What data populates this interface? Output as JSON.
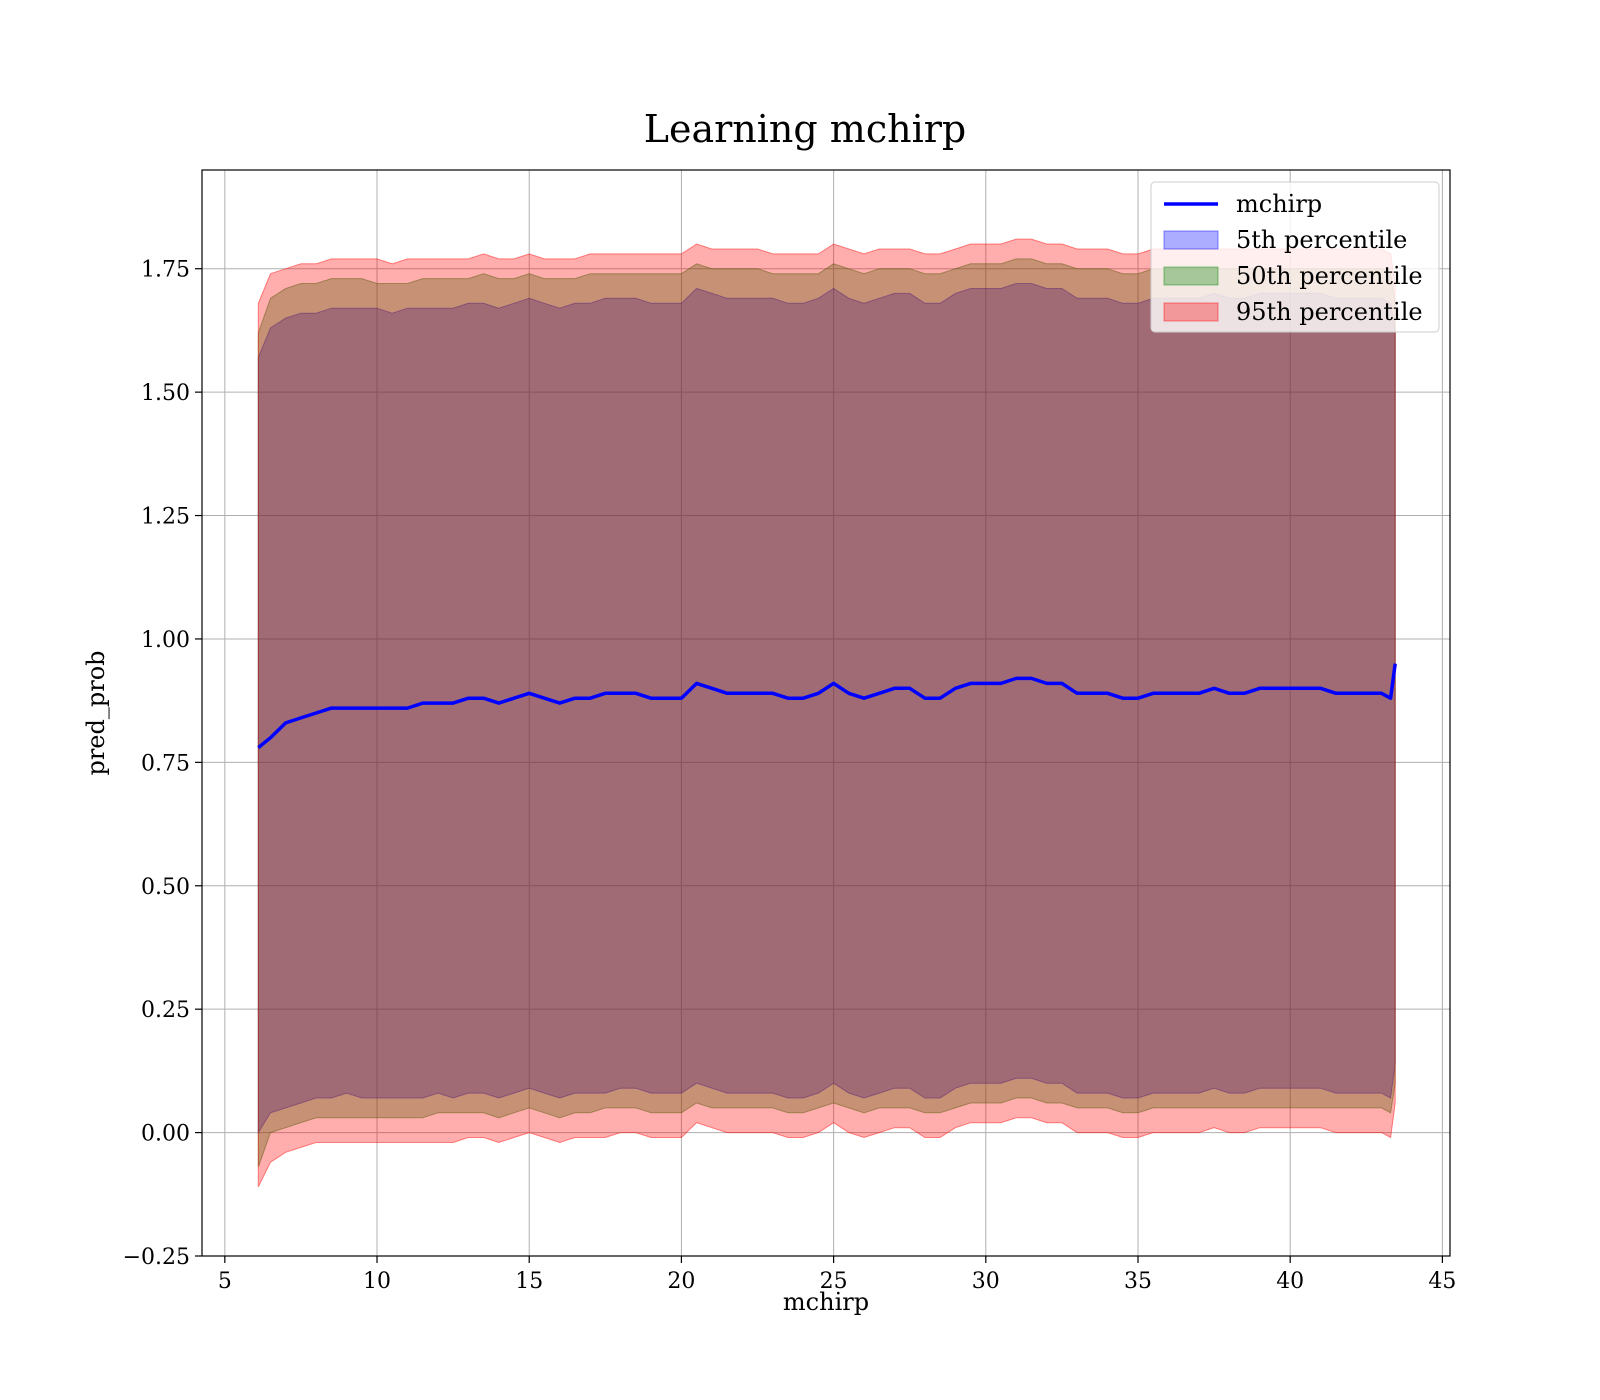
{
  "chart_data": {
    "type": "line",
    "title": "Learning mchirp",
    "xlabel": "mchirp",
    "ylabel": "pred_prob",
    "xlim": [
      4.25,
      45.25
    ],
    "ylim": [
      -0.25,
      1.95
    ],
    "xticks": [
      5,
      10,
      15,
      20,
      25,
      30,
      35,
      40,
      45
    ],
    "xtick_labels": [
      "5",
      "10",
      "15",
      "20",
      "25",
      "30",
      "35",
      "40",
      "45"
    ],
    "yticks": [
      -0.25,
      0.0,
      0.25,
      0.5,
      0.75,
      1.0,
      1.25,
      1.5,
      1.75
    ],
    "ytick_labels": [
      "−0.25",
      "0.00",
      "0.25",
      "0.50",
      "0.75",
      "1.00",
      "1.25",
      "1.50",
      "1.75"
    ],
    "grid": true,
    "legend_position": "top-right",
    "x": [
      6.1,
      6.5,
      7,
      7.5,
      8,
      8.5,
      9,
      9.5,
      10,
      10.5,
      11,
      11.5,
      12,
      12.5,
      13,
      13.5,
      14,
      14.5,
      15,
      15.5,
      16,
      16.5,
      17,
      17.5,
      18,
      18.5,
      19,
      19.5,
      20,
      20.5,
      21,
      21.5,
      22,
      22.5,
      23,
      23.5,
      24,
      24.5,
      25,
      25.5,
      26,
      26.5,
      27,
      27.5,
      28,
      28.5,
      29,
      29.5,
      30,
      30.5,
      31,
      31.5,
      32,
      32.5,
      33,
      33.5,
      34,
      34.5,
      35,
      35.5,
      36,
      36.5,
      37,
      37.5,
      38,
      38.5,
      39,
      39.5,
      40,
      40.5,
      41,
      41.5,
      42,
      42.5,
      43,
      43.3,
      43.45
    ],
    "series": [
      {
        "name": "mchirp",
        "kind": "line",
        "color": "#0000ff",
        "values": [
          0.78,
          0.8,
          0.83,
          0.84,
          0.85,
          0.86,
          0.86,
          0.86,
          0.86,
          0.86,
          0.86,
          0.87,
          0.87,
          0.87,
          0.88,
          0.88,
          0.87,
          0.88,
          0.89,
          0.88,
          0.87,
          0.88,
          0.88,
          0.89,
          0.89,
          0.89,
          0.88,
          0.88,
          0.88,
          0.91,
          0.9,
          0.89,
          0.89,
          0.89,
          0.89,
          0.88,
          0.88,
          0.89,
          0.91,
          0.89,
          0.88,
          0.89,
          0.9,
          0.9,
          0.88,
          0.88,
          0.9,
          0.91,
          0.91,
          0.91,
          0.92,
          0.92,
          0.91,
          0.91,
          0.89,
          0.89,
          0.89,
          0.88,
          0.88,
          0.89,
          0.89,
          0.89,
          0.89,
          0.9,
          0.89,
          0.89,
          0.9,
          0.9,
          0.9,
          0.9,
          0.9,
          0.89,
          0.89,
          0.89,
          0.89,
          0.88,
          0.95
        ]
      },
      {
        "name": "5th percentile",
        "kind": "band",
        "color": "#0000ff",
        "lower": [
          0.0,
          0.04,
          0.05,
          0.06,
          0.07,
          0.07,
          0.08,
          0.07,
          0.07,
          0.07,
          0.07,
          0.07,
          0.08,
          0.07,
          0.08,
          0.08,
          0.07,
          0.08,
          0.09,
          0.08,
          0.07,
          0.08,
          0.08,
          0.08,
          0.09,
          0.09,
          0.08,
          0.08,
          0.08,
          0.1,
          0.09,
          0.08,
          0.08,
          0.08,
          0.08,
          0.07,
          0.07,
          0.08,
          0.1,
          0.08,
          0.07,
          0.08,
          0.09,
          0.09,
          0.07,
          0.07,
          0.09,
          0.1,
          0.1,
          0.1,
          0.11,
          0.11,
          0.1,
          0.1,
          0.08,
          0.08,
          0.08,
          0.07,
          0.07,
          0.08,
          0.08,
          0.08,
          0.08,
          0.09,
          0.08,
          0.08,
          0.09,
          0.09,
          0.09,
          0.09,
          0.09,
          0.08,
          0.08,
          0.08,
          0.08,
          0.07,
          0.14
        ],
        "upper": [
          1.57,
          1.63,
          1.65,
          1.66,
          1.66,
          1.67,
          1.67,
          1.67,
          1.67,
          1.66,
          1.67,
          1.67,
          1.67,
          1.67,
          1.68,
          1.68,
          1.67,
          1.68,
          1.69,
          1.68,
          1.67,
          1.68,
          1.68,
          1.69,
          1.69,
          1.69,
          1.68,
          1.68,
          1.68,
          1.71,
          1.7,
          1.69,
          1.69,
          1.69,
          1.69,
          1.68,
          1.68,
          1.69,
          1.71,
          1.69,
          1.68,
          1.69,
          1.7,
          1.7,
          1.68,
          1.68,
          1.7,
          1.71,
          1.71,
          1.71,
          1.72,
          1.72,
          1.71,
          1.71,
          1.69,
          1.69,
          1.69,
          1.68,
          1.68,
          1.69,
          1.69,
          1.69,
          1.69,
          1.7,
          1.69,
          1.69,
          1.7,
          1.7,
          1.7,
          1.7,
          1.7,
          1.69,
          1.69,
          1.69,
          1.69,
          1.68,
          1.62
        ]
      },
      {
        "name": "50th percentile",
        "kind": "band",
        "color": "#008000",
        "lower": [
          -0.07,
          0.0,
          0.01,
          0.02,
          0.03,
          0.03,
          0.03,
          0.03,
          0.03,
          0.03,
          0.03,
          0.03,
          0.04,
          0.04,
          0.04,
          0.04,
          0.03,
          0.04,
          0.05,
          0.04,
          0.03,
          0.04,
          0.04,
          0.05,
          0.05,
          0.05,
          0.04,
          0.04,
          0.04,
          0.06,
          0.05,
          0.05,
          0.05,
          0.05,
          0.05,
          0.04,
          0.04,
          0.05,
          0.06,
          0.05,
          0.04,
          0.05,
          0.05,
          0.05,
          0.04,
          0.04,
          0.05,
          0.06,
          0.06,
          0.06,
          0.07,
          0.07,
          0.06,
          0.06,
          0.05,
          0.05,
          0.05,
          0.04,
          0.04,
          0.05,
          0.05,
          0.05,
          0.05,
          0.05,
          0.05,
          0.05,
          0.05,
          0.05,
          0.05,
          0.05,
          0.05,
          0.05,
          0.05,
          0.05,
          0.05,
          0.04,
          0.1
        ],
        "upper": [
          1.62,
          1.69,
          1.71,
          1.72,
          1.72,
          1.73,
          1.73,
          1.73,
          1.72,
          1.72,
          1.72,
          1.73,
          1.73,
          1.73,
          1.73,
          1.74,
          1.73,
          1.73,
          1.74,
          1.73,
          1.73,
          1.73,
          1.74,
          1.74,
          1.74,
          1.74,
          1.74,
          1.74,
          1.74,
          1.76,
          1.75,
          1.75,
          1.75,
          1.75,
          1.74,
          1.74,
          1.74,
          1.74,
          1.76,
          1.75,
          1.74,
          1.75,
          1.75,
          1.75,
          1.74,
          1.74,
          1.75,
          1.76,
          1.76,
          1.76,
          1.77,
          1.77,
          1.76,
          1.76,
          1.75,
          1.75,
          1.75,
          1.74,
          1.74,
          1.75,
          1.75,
          1.75,
          1.75,
          1.75,
          1.75,
          1.75,
          1.75,
          1.75,
          1.75,
          1.75,
          1.75,
          1.75,
          1.75,
          1.75,
          1.75,
          1.74,
          1.68
        ]
      },
      {
        "name": "95th percentile",
        "kind": "band",
        "color": "#ff0000",
        "lower": [
          -0.11,
          -0.06,
          -0.04,
          -0.03,
          -0.02,
          -0.02,
          -0.02,
          -0.02,
          -0.02,
          -0.02,
          -0.02,
          -0.02,
          -0.02,
          -0.02,
          -0.01,
          -0.01,
          -0.02,
          -0.01,
          0.0,
          -0.01,
          -0.02,
          -0.01,
          -0.01,
          -0.01,
          0.0,
          0.0,
          -0.01,
          -0.01,
          -0.01,
          0.02,
          0.01,
          0.0,
          0.0,
          0.0,
          0.0,
          -0.01,
          -0.01,
          0.0,
          0.02,
          0.0,
          -0.01,
          0.0,
          0.01,
          0.01,
          -0.01,
          -0.01,
          0.01,
          0.02,
          0.02,
          0.02,
          0.03,
          0.03,
          0.02,
          0.02,
          0.0,
          0.0,
          0.0,
          -0.01,
          -0.01,
          0.0,
          0.0,
          0.0,
          0.0,
          0.01,
          0.0,
          0.0,
          0.01,
          0.01,
          0.01,
          0.01,
          0.01,
          0.0,
          0.0,
          0.0,
          0.0,
          -0.01,
          0.06
        ],
        "upper": [
          1.68,
          1.74,
          1.75,
          1.76,
          1.76,
          1.77,
          1.77,
          1.77,
          1.77,
          1.76,
          1.77,
          1.77,
          1.77,
          1.77,
          1.77,
          1.78,
          1.77,
          1.77,
          1.78,
          1.77,
          1.77,
          1.77,
          1.78,
          1.78,
          1.78,
          1.78,
          1.78,
          1.78,
          1.78,
          1.8,
          1.79,
          1.79,
          1.79,
          1.79,
          1.78,
          1.78,
          1.78,
          1.78,
          1.8,
          1.79,
          1.78,
          1.79,
          1.79,
          1.79,
          1.78,
          1.78,
          1.79,
          1.8,
          1.8,
          1.8,
          1.81,
          1.81,
          1.8,
          1.8,
          1.79,
          1.79,
          1.79,
          1.78,
          1.78,
          1.79,
          1.79,
          1.79,
          1.79,
          1.79,
          1.79,
          1.79,
          1.79,
          1.79,
          1.79,
          1.79,
          1.79,
          1.79,
          1.79,
          1.79,
          1.79,
          1.78,
          1.72
        ]
      }
    ]
  }
}
